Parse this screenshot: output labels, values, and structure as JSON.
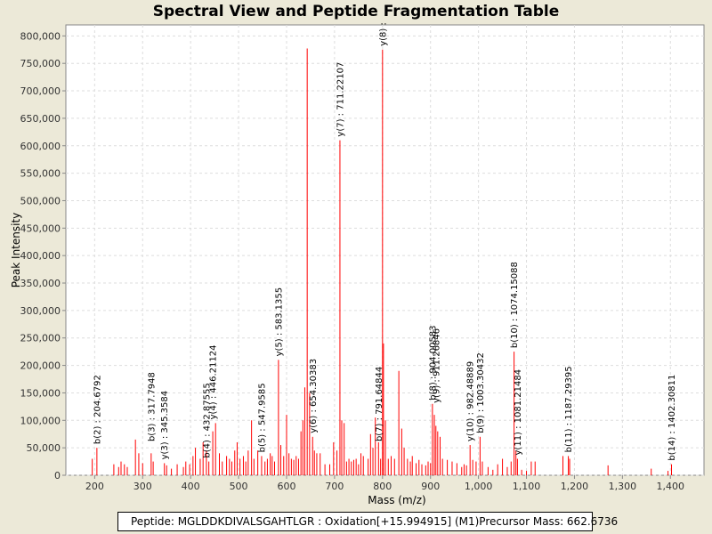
{
  "chart_data": {
    "type": "bar",
    "title": "Spectral View and Peptide Fragmentation Table",
    "xlabel": "Mass (m/z)",
    "ylabel": "Peak Intensity",
    "xlim": [
      140,
      1470
    ],
    "ylim": [
      0,
      820000
    ],
    "x_ticks": [
      "200",
      "300",
      "400",
      "500",
      "600",
      "700",
      "800",
      "900",
      "1,000",
      "1,100",
      "1,200",
      "1,300",
      "1,400"
    ],
    "y_ticks": [
      "0",
      "50,000",
      "100,000",
      "150,000",
      "200,000",
      "250,000",
      "300,000",
      "350,000",
      "400,000",
      "450,000",
      "500,000",
      "550,000",
      "600,000",
      "650,000",
      "700,000",
      "750,000",
      "800,000"
    ],
    "grid": true,
    "bar_color": "#ff0000",
    "peaks": [
      [
        195,
        30000
      ],
      [
        204.68,
        50000
      ],
      [
        240,
        20000
      ],
      [
        250,
        15000
      ],
      [
        255,
        25000
      ],
      [
        262,
        20000
      ],
      [
        268,
        15000
      ],
      [
        285,
        65000
      ],
      [
        292,
        40000
      ],
      [
        300,
        22000
      ],
      [
        317.79,
        40000
      ],
      [
        322,
        25000
      ],
      [
        345.36,
        22000
      ],
      [
        350,
        18000
      ],
      [
        360,
        12000
      ],
      [
        372,
        20000
      ],
      [
        385,
        15000
      ],
      [
        390,
        25000
      ],
      [
        398,
        20000
      ],
      [
        405,
        35000
      ],
      [
        410,
        50000
      ],
      [
        420,
        30000
      ],
      [
        426,
        60000
      ],
      [
        432.88,
        45000
      ],
      [
        438,
        25000
      ],
      [
        446.21,
        80000
      ],
      [
        452,
        95000
      ],
      [
        460,
        40000
      ],
      [
        466,
        25000
      ],
      [
        475,
        35000
      ],
      [
        481,
        30000
      ],
      [
        486,
        25000
      ],
      [
        492,
        45000
      ],
      [
        497,
        60000
      ],
      [
        503,
        30000
      ],
      [
        510,
        35000
      ],
      [
        515,
        25000
      ],
      [
        520,
        45000
      ],
      [
        527,
        100000
      ],
      [
        532,
        30000
      ],
      [
        540,
        45000
      ],
      [
        547.96,
        35000
      ],
      [
        555,
        25000
      ],
      [
        560,
        30000
      ],
      [
        566,
        40000
      ],
      [
        570,
        35000
      ],
      [
        575,
        25000
      ],
      [
        583.14,
        210000
      ],
      [
        588,
        55000
      ],
      [
        594,
        35000
      ],
      [
        600,
        110000
      ],
      [
        605,
        40000
      ],
      [
        610,
        30000
      ],
      [
        615,
        28000
      ],
      [
        620,
        35000
      ],
      [
        625,
        30000
      ],
      [
        630,
        80000
      ],
      [
        634,
        100000
      ],
      [
        638,
        160000
      ],
      [
        643,
        777000
      ],
      [
        648,
        150000
      ],
      [
        654.3,
        70000
      ],
      [
        658,
        45000
      ],
      [
        663,
        40000
      ],
      [
        670,
        40000
      ],
      [
        680,
        20000
      ],
      [
        690,
        20000
      ],
      [
        698,
        60000
      ],
      [
        705,
        45000
      ],
      [
        711.22,
        610000
      ],
      [
        715,
        100000
      ],
      [
        720,
        95000
      ],
      [
        725,
        25000
      ],
      [
        730,
        30000
      ],
      [
        735,
        25000
      ],
      [
        740,
        28000
      ],
      [
        745,
        30000
      ],
      [
        750,
        20000
      ],
      [
        755,
        40000
      ],
      [
        760,
        35000
      ],
      [
        770,
        30000
      ],
      [
        775,
        75000
      ],
      [
        780,
        50000
      ],
      [
        785,
        105000
      ],
      [
        791.65,
        60000
      ],
      [
        796,
        30000
      ],
      [
        800,
        775000
      ],
      [
        802,
        240000
      ],
      [
        806,
        100000
      ],
      [
        812,
        30000
      ],
      [
        818,
        35000
      ],
      [
        825,
        30000
      ],
      [
        834,
        190000
      ],
      [
        840,
        85000
      ],
      [
        845,
        50000
      ],
      [
        852,
        30000
      ],
      [
        858,
        25000
      ],
      [
        862,
        35000
      ],
      [
        870,
        22000
      ],
      [
        876,
        28000
      ],
      [
        882,
        20000
      ],
      [
        890,
        18000
      ],
      [
        895,
        25000
      ],
      [
        900,
        22000
      ],
      [
        904,
        130000
      ],
      [
        908,
        110000
      ],
      [
        911.27,
        90000
      ],
      [
        915,
        80000
      ],
      [
        920,
        70000
      ],
      [
        925,
        30000
      ],
      [
        935,
        28000
      ],
      [
        945,
        25000
      ],
      [
        955,
        22000
      ],
      [
        965,
        15000
      ],
      [
        970,
        20000
      ],
      [
        975,
        18000
      ],
      [
        982.49,
        55000
      ],
      [
        988,
        28000
      ],
      [
        995,
        25000
      ],
      [
        1003.3,
        70000
      ],
      [
        1008,
        25000
      ],
      [
        1020,
        15000
      ],
      [
        1030,
        10000
      ],
      [
        1040,
        20000
      ],
      [
        1050,
        30000
      ],
      [
        1060,
        15000
      ],
      [
        1068,
        25000
      ],
      [
        1074.15,
        225000
      ],
      [
        1078,
        45000
      ],
      [
        1081.21,
        30000
      ],
      [
        1090,
        10000
      ],
      [
        1100,
        8000
      ],
      [
        1110,
        25000
      ],
      [
        1118,
        25000
      ],
      [
        1176,
        35000
      ],
      [
        1187.29,
        35000
      ],
      [
        1190,
        30000
      ],
      [
        1270,
        18000
      ],
      [
        1360,
        12000
      ],
      [
        1395,
        8000
      ],
      [
        1402.31,
        20000
      ]
    ],
    "annotations": [
      {
        "x": 204.68,
        "y": 50000,
        "label": "b(2) : 204.6792"
      },
      {
        "x": 317.79,
        "y": 55000,
        "label": "b(3) : 317.7948"
      },
      {
        "x": 345.36,
        "y": 22000,
        "label": "y(3) : 345.3584"
      },
      {
        "x": 432.88,
        "y": 25000,
        "label": "b(4) : 432.87555"
      },
      {
        "x": 446.21,
        "y": 95000,
        "label": "y(4) : 446.21124"
      },
      {
        "x": 547.96,
        "y": 35000,
        "label": "b(5) : 547.9585"
      },
      {
        "x": 583.14,
        "y": 210000,
        "label": "y(5) : 583.1355"
      },
      {
        "x": 654.3,
        "y": 70000,
        "label": "y(6) : 654.30383"
      },
      {
        "x": 711.22,
        "y": 610000,
        "label": "y(7) : 711.22107"
      },
      {
        "x": 791.65,
        "y": 55000,
        "label": "b(7) : 791.64844"
      },
      {
        "x": 800,
        "y": 775000,
        "label": "y(8) :"
      },
      {
        "x": 904.0,
        "y": 130000,
        "label": "b(8) : 904.00583"
      },
      {
        "x": 911.27,
        "y": 125000,
        "label": "y(9) : 911.26846"
      },
      {
        "x": 982.49,
        "y": 55000,
        "label": "y(10) : 982.48889"
      },
      {
        "x": 1003.3,
        "y": 70000,
        "label": "b(9) : 1003.30432"
      },
      {
        "x": 1074.15,
        "y": 225000,
        "label": "b(10) : 1074.15088"
      },
      {
        "x": 1081.21,
        "y": 30000,
        "label": "y(11) : 1081.21484"
      },
      {
        "x": 1187.29,
        "y": 35000,
        "label": "b(11) : 1187.29395"
      },
      {
        "x": 1402.31,
        "y": 20000,
        "label": "b(14) : 1402.30811"
      }
    ]
  },
  "info": {
    "peptide": "Peptide: MGLDDKDIVALSGAHTLGR : Oxidation[+15.994915] (M1)",
    "precursor": "Precursor Mass: 662.6736"
  }
}
